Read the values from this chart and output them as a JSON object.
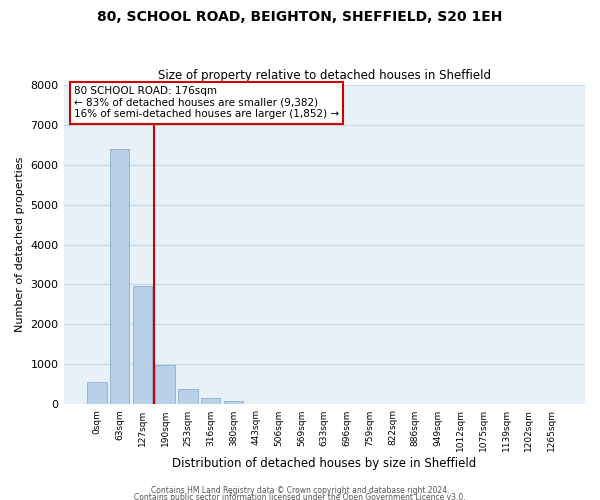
{
  "title": "80, SCHOOL ROAD, BEIGHTON, SHEFFIELD, S20 1EH",
  "subtitle": "Size of property relative to detached houses in Sheffield",
  "xlabel": "Distribution of detached houses by size in Sheffield",
  "ylabel": "Number of detached properties",
  "bar_labels": [
    "0sqm",
    "63sqm",
    "127sqm",
    "190sqm",
    "253sqm",
    "316sqm",
    "380sqm",
    "443sqm",
    "506sqm",
    "569sqm",
    "633sqm",
    "696sqm",
    "759sqm",
    "822sqm",
    "886sqm",
    "949sqm",
    "1012sqm",
    "1075sqm",
    "1139sqm",
    "1202sqm",
    "1265sqm"
  ],
  "bar_values": [
    550,
    6380,
    2950,
    980,
    380,
    170,
    80,
    0,
    0,
    0,
    0,
    0,
    0,
    0,
    0,
    0,
    0,
    0,
    0,
    0,
    0
  ],
  "bar_color": "#b8d0e8",
  "bar_edge_color": "#8ab0d0",
  "grid_color": "#c8d8e8",
  "background_color": "#e8f0f8",
  "vline_color": "#cc0000",
  "annotation_line1": "80 SCHOOL ROAD: 176sqm",
  "annotation_line2": "← 83% of detached houses are smaller (9,382)",
  "annotation_line3": "16% of semi-detached houses are larger (1,852) →",
  "annotation_box_color": "#ffffff",
  "annotation_box_edge": "#cc0000",
  "ylim": [
    0,
    8000
  ],
  "yticks": [
    0,
    1000,
    2000,
    3000,
    4000,
    5000,
    6000,
    7000,
    8000
  ],
  "footer1": "Contains HM Land Registry data © Crown copyright and database right 2024.",
  "footer2": "Contains public sector information licensed under the Open Government Licence v3.0."
}
